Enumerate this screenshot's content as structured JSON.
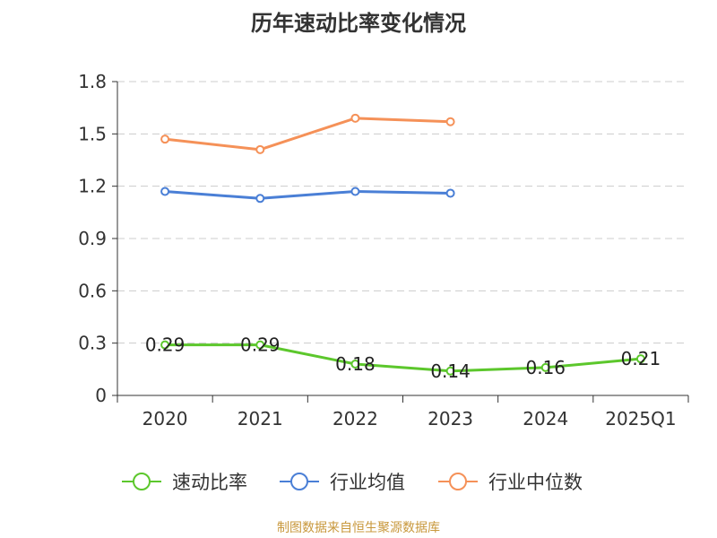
{
  "chart_data": {
    "type": "line",
    "title": "历年速动比率变化情况",
    "categories": [
      "2020",
      "2021",
      "2022",
      "2023",
      "2024",
      "2025Q1"
    ],
    "ylim": [
      0,
      1.8
    ],
    "yticks": [
      0,
      0.3,
      0.6,
      0.9,
      1.2,
      1.5,
      1.8
    ],
    "ytick_labels": [
      "0",
      "0.3",
      "0.6",
      "0.9",
      "1.2",
      "1.5",
      "1.8"
    ],
    "grid": true,
    "legend_position": "bottom",
    "series": [
      {
        "name": "速动比率",
        "color": "#5cc72c",
        "values": [
          0.29,
          0.29,
          0.18,
          0.14,
          0.16,
          0.21
        ],
        "labels": [
          "0.29",
          "0.29",
          "0.18",
          "0.14",
          "0.16",
          "0.21"
        ]
      },
      {
        "name": "行业均值",
        "color": "#4a7fd6",
        "values": [
          1.17,
          1.13,
          1.17,
          1.16,
          null,
          null
        ]
      },
      {
        "name": "行业中位数",
        "color": "#f59158",
        "values": [
          1.47,
          1.41,
          1.59,
          1.57,
          null,
          null
        ]
      }
    ]
  },
  "footer": {
    "source": "制图数据来自恒生聚源数据库"
  }
}
